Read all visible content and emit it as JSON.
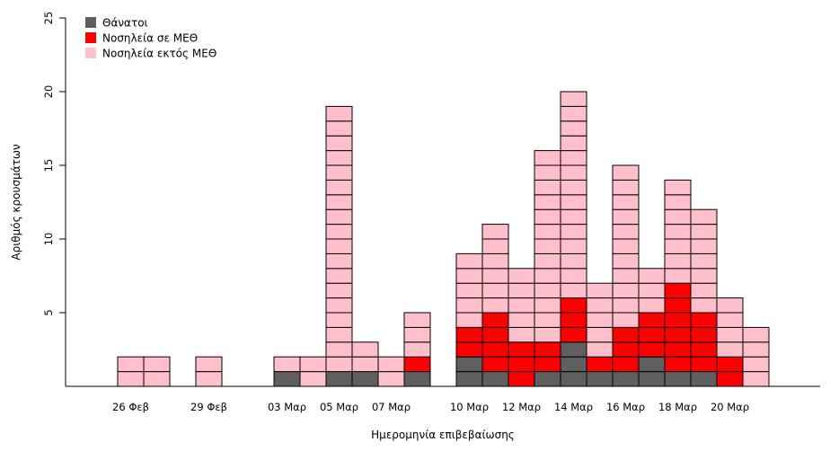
{
  "chart_data": {
    "type": "bar",
    "stacked": true,
    "unit_blocks": true,
    "title": "",
    "xlabel": "Ημερομηνία επιβεβαίωσης",
    "ylabel": "Αριθμός κρουσμάτων",
    "ylim": [
      0,
      25
    ],
    "yticks": [
      5,
      10,
      15,
      20,
      25
    ],
    "grid": false,
    "legend_position": "top-left",
    "categories": [
      "26 Φεβ",
      "27 Φεβ",
      "28 Φεβ",
      "29 Φεβ",
      "01 Μαρ",
      "02 Μαρ",
      "03 Μαρ",
      "04 Μαρ",
      "05 Μαρ",
      "06 Μαρ",
      "07 Μαρ",
      "08 Μαρ",
      "09 Μαρ",
      "10 Μαρ",
      "11 Μαρ",
      "12 Μαρ",
      "13 Μαρ",
      "14 Μαρ",
      "15 Μαρ",
      "16 Μαρ",
      "17 Μαρ",
      "18 Μαρ",
      "19 Μαρ",
      "20 Μαρ",
      "21 Μαρ"
    ],
    "tick_labels": [
      {
        "index": 0,
        "label": "26 Φεβ"
      },
      {
        "index": 3,
        "label": "29 Φεβ"
      },
      {
        "index": 6,
        "label": "03 Μαρ"
      },
      {
        "index": 8,
        "label": "05 Μαρ"
      },
      {
        "index": 10,
        "label": "07 Μαρ"
      },
      {
        "index": 13,
        "label": "10 Μαρ"
      },
      {
        "index": 15,
        "label": "12 Μαρ"
      },
      {
        "index": 17,
        "label": "14 Μαρ"
      },
      {
        "index": 19,
        "label": "16 Μαρ"
      },
      {
        "index": 21,
        "label": "18 Μαρ"
      },
      {
        "index": 23,
        "label": "20 Μαρ"
      }
    ],
    "series": [
      {
        "name": "Θάνατοι",
        "color": "#5f5f5f",
        "values": [
          0,
          0,
          0,
          0,
          0,
          0,
          1,
          0,
          1,
          1,
          0,
          1,
          0,
          2,
          1,
          0,
          1,
          3,
          1,
          1,
          2,
          1,
          1,
          0,
          0
        ]
      },
      {
        "name": "Νοσηλεία σε ΜΕΘ",
        "color": "#ff0000",
        "values": [
          0,
          0,
          0,
          0,
          0,
          0,
          0,
          0,
          0,
          0,
          0,
          1,
          0,
          2,
          4,
          3,
          2,
          3,
          1,
          3,
          3,
          6,
          4,
          2,
          0
        ]
      },
      {
        "name": "Νοσηλεία εκτός ΜΕΘ",
        "color": "#ffc0cb",
        "values": [
          2,
          2,
          0,
          2,
          0,
          0,
          1,
          2,
          18,
          2,
          2,
          3,
          0,
          5,
          6,
          5,
          13,
          14,
          5,
          11,
          3,
          7,
          7,
          4,
          4
        ]
      }
    ]
  }
}
